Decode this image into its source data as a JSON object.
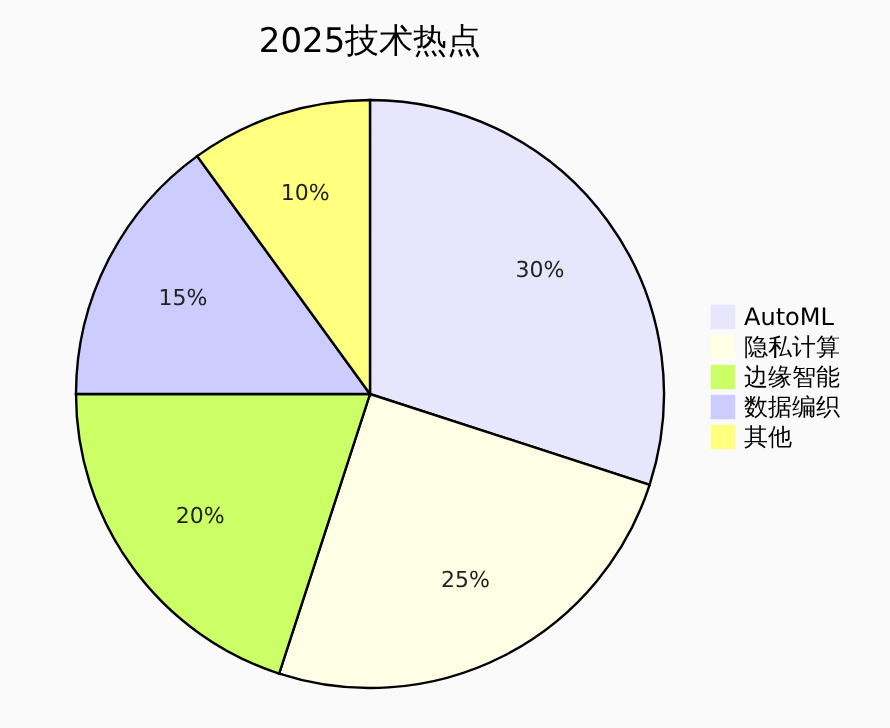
{
  "chart_data": {
    "type": "pie",
    "title": "2025技术热点",
    "categories": [
      "AutoML",
      "隐私计算",
      "边缘智能",
      "数据编织",
      "其他"
    ],
    "values": [
      30,
      25,
      20,
      15,
      10
    ],
    "colors": [
      "#e8e6fc",
      "#ffffe6",
      "#ccff66",
      "#ccccff",
      "#ffff80"
    ],
    "value_labels": [
      "30%",
      "25%",
      "20%",
      "15%",
      "10%"
    ],
    "legend": "right"
  }
}
